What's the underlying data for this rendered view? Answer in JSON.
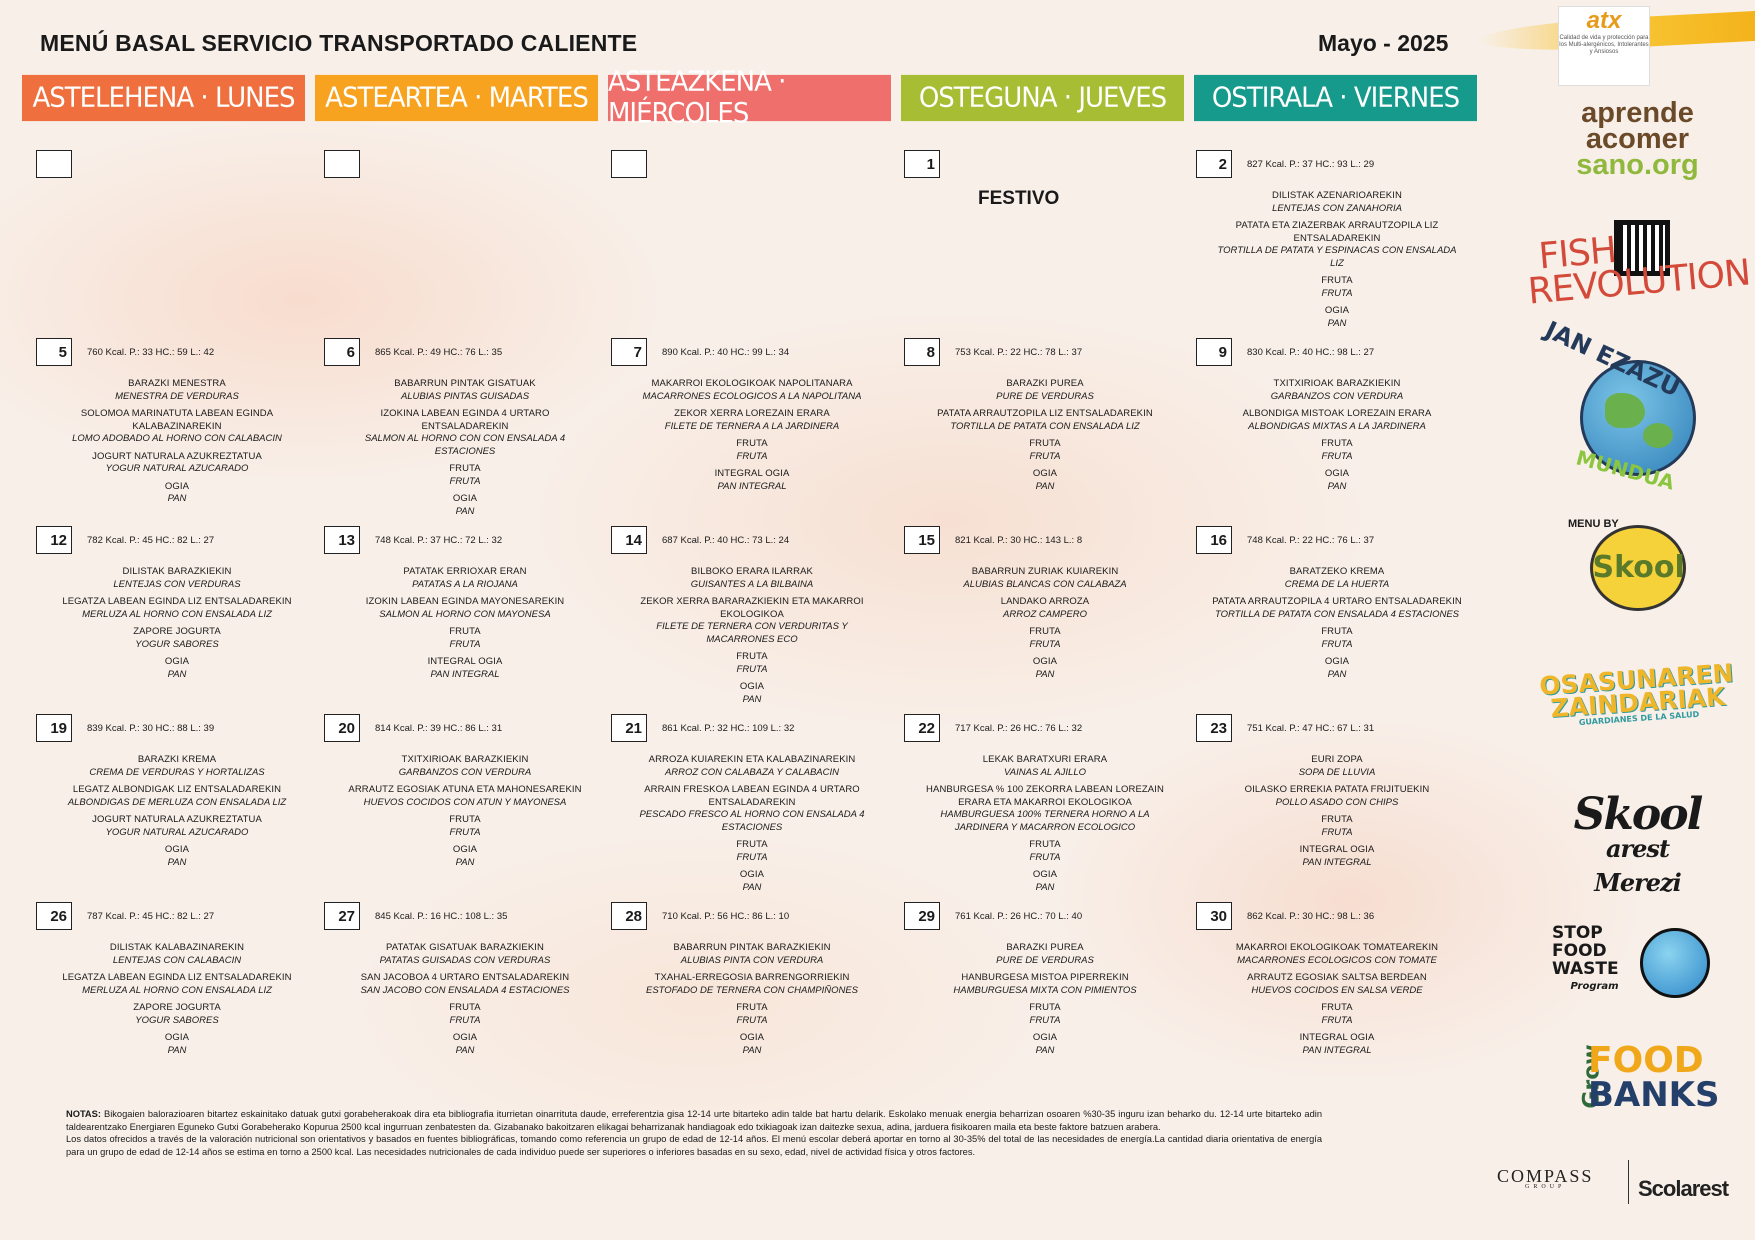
{
  "header": {
    "title": "MENÚ BASAL SERVICIO TRANSPORTADO CALIENTE",
    "date": "Mayo - 2025"
  },
  "days": [
    {
      "label": "ASTELEHENA · LUNES",
      "color": "#ef6f3e"
    },
    {
      "label": "ASTEARTEA · MARTES",
      "color": "#f7a320"
    },
    {
      "label": "ASTEAZKENA · MIÉRCOLES",
      "color": "#ee6f6b"
    },
    {
      "label": "OSTEGUNA · JUEVES",
      "color": "#a7bd34"
    },
    {
      "label": "OSTIRALA · VIERNES",
      "color": "#169a8c"
    }
  ],
  "weeks": [
    [
      {
        "num": "",
        "nutri": "",
        "dishes": []
      },
      {
        "num": "",
        "nutri": "",
        "dishes": []
      },
      {
        "num": "",
        "nutri": "",
        "dishes": []
      },
      {
        "num": "1",
        "nutri": "",
        "festivo": "FESTIVO",
        "dishes": []
      },
      {
        "num": "2",
        "nutri": "827 Kcal. P.: 37 HC.: 93 L.: 29",
        "dishes": [
          {
            "eu": "DILISTAK AZENARIOAREKIN",
            "es": "LENTEJAS CON ZANAHORIA"
          },
          {
            "eu": "PATATA ETA ZIAZERBAK ARRAUTZOPILA LIZ ENTSALADAREKIN",
            "es": "TORTILLA DE PATATA Y ESPINACAS CON ENSALADA LIZ"
          },
          {
            "eu": "FRUTA",
            "es": "FRUTA"
          },
          {
            "eu": "OGIA",
            "es": "PAN"
          }
        ]
      }
    ],
    [
      {
        "num": "5",
        "nutri": "760 Kcal. P.: 33 HC.: 59 L.: 42",
        "dishes": [
          {
            "eu": "BARAZKI MENESTRA",
            "es": "MENESTRA DE VERDURAS"
          },
          {
            "eu": "SOLOMOA MARINATUTA LABEAN EGINDA KALABAZINAREKIN",
            "es": "LOMO ADOBADO AL HORNO CON CALABACIN"
          },
          {
            "eu": "JOGURT NATURALA AZUKREZTATUA",
            "es": "YOGUR NATURAL AZUCARADO"
          },
          {
            "eu": "OGIA",
            "es": "PAN"
          }
        ]
      },
      {
        "num": "6",
        "nutri": "865 Kcal. P.: 49 HC.: 76 L.: 35",
        "dishes": [
          {
            "eu": "BABARRUN PINTAK GISATUAK",
            "es": "ALUBIAS PINTAS GUISADAS"
          },
          {
            "eu": "IZOKINA LABEAN EGINDA 4 URTARO ENTSALADAREKIN",
            "es": "SALMON AL HORNO CON CON ENSALADA 4 ESTACIONES"
          },
          {
            "eu": "FRUTA",
            "es": "FRUTA"
          },
          {
            "eu": "OGIA",
            "es": "PAN"
          }
        ]
      },
      {
        "num": "7",
        "nutri": "890 Kcal. P.: 40 HC.: 99 L.: 34",
        "dishes": [
          {
            "eu": "MAKARROI EKOLOGIKOAK NAPOLITANARA",
            "es": "MACARRONES ECOLOGICOS A LA NAPOLITANA"
          },
          {
            "eu": "ZEKOR XERRA LOREZAIN ERARA",
            "es": "FILETE DE TERNERA A LA JARDINERA"
          },
          {
            "eu": "FRUTA",
            "es": "FRUTA"
          },
          {
            "eu": "INTEGRAL OGIA",
            "es": "PAN INTEGRAL"
          }
        ]
      },
      {
        "num": "8",
        "nutri": "753 Kcal. P.: 22 HC.: 78 L.: 37",
        "dishes": [
          {
            "eu": "BARAZKI PUREA",
            "es": "PURE DE VERDURAS"
          },
          {
            "eu": "PATATA ARRAUTZOPILA LIZ ENTSALADAREKIN",
            "es": "TORTILLA DE PATATA CON ENSALADA LIZ"
          },
          {
            "eu": "FRUTA",
            "es": "FRUTA"
          },
          {
            "eu": "OGIA",
            "es": "PAN"
          }
        ]
      },
      {
        "num": "9",
        "nutri": "830 Kcal. P.: 40 HC.: 98 L.: 27",
        "dishes": [
          {
            "eu": "TXITXIRIOAK BARAZKIEKIN",
            "es": "GARBANZOS CON VERDURA"
          },
          {
            "eu": "ALBONDIGA MISTOAK LOREZAIN ERARA",
            "es": "ALBONDIGAS MIXTAS A LA JARDINERA"
          },
          {
            "eu": "FRUTA",
            "es": "FRUTA"
          },
          {
            "eu": "OGIA",
            "es": "PAN"
          }
        ]
      }
    ],
    [
      {
        "num": "12",
        "nutri": "782 Kcal. P.: 45 HC.: 82 L.: 27",
        "dishes": [
          {
            "eu": "DILISTAK BARAZKIEKIN",
            "es": "LENTEJAS CON VERDURAS"
          },
          {
            "eu": "LEGATZA LABEAN EGINDA LIZ ENTSALADAREKIN",
            "es": "MERLUZA AL HORNO CON ENSALADA LIZ"
          },
          {
            "eu": "ZAPORE JOGURTA",
            "es": "YOGUR SABORES"
          },
          {
            "eu": "OGIA",
            "es": "PAN"
          }
        ]
      },
      {
        "num": "13",
        "nutri": "748 Kcal. P.: 37 HC.: 72 L.: 32",
        "dishes": [
          {
            "eu": "PATATAK ERRIOXAR ERAN",
            "es": "PATATAS A LA RIOJANA"
          },
          {
            "eu": "IZOKIN LABEAN EGINDA MAYONESAREKIN",
            "es": "SALMON AL HORNO CON MAYONESA"
          },
          {
            "eu": "FRUTA",
            "es": "FRUTA"
          },
          {
            "eu": "INTEGRAL OGIA",
            "es": "PAN INTEGRAL"
          }
        ]
      },
      {
        "num": "14",
        "nutri": "687 Kcal. P.: 40 HC.: 73 L.: 24",
        "dishes": [
          {
            "eu": "BILBOKO ERARA ILARRAK",
            "es": "GUISANTES A LA BILBAINA"
          },
          {
            "eu": "ZEKOR XERRA BARARAZKIEKIN ETA MAKARROI EKOLOGIKOA",
            "es": "FILETE DE TERNERA CON VERDURITAS Y MACARRONES ECO"
          },
          {
            "eu": "FRUTA",
            "es": "FRUTA"
          },
          {
            "eu": "OGIA",
            "es": "PAN"
          }
        ]
      },
      {
        "num": "15",
        "nutri": "821 Kcal. P.: 30 HC.: 143 L.: 8",
        "dishes": [
          {
            "eu": "BABARRUN ZURIAK KUIAREKIN",
            "es": "ALUBIAS BLANCAS CON CALABAZA"
          },
          {
            "eu": "LANDAKO ARROZA",
            "es": "ARROZ CAMPERO"
          },
          {
            "eu": "FRUTA",
            "es": "FRUTA"
          },
          {
            "eu": "OGIA",
            "es": "PAN"
          }
        ]
      },
      {
        "num": "16",
        "nutri": "748 Kcal. P.: 22 HC.: 76 L.: 37",
        "dishes": [
          {
            "eu": "BARATZEKO KREMA",
            "es": "CREMA DE LA HUERTA"
          },
          {
            "eu": "PATATA ARRAUTZOPILA 4 URTARO ENTSALADAREKIN",
            "es": "TORTILLA DE PATATA CON ENSALADA 4 ESTACIONES"
          },
          {
            "eu": "FRUTA",
            "es": "FRUTA"
          },
          {
            "eu": "OGIA",
            "es": "PAN"
          }
        ]
      }
    ],
    [
      {
        "num": "19",
        "nutri": "839 Kcal. P.: 30 HC.: 88 L.: 39",
        "dishes": [
          {
            "eu": "BARAZKI KREMA",
            "es": "CREMA DE VERDURAS Y HORTALIZAS"
          },
          {
            "eu": "LEGATZ ALBONDIGAK LIZ ENTSALADAREKIN",
            "es": "ALBONDIGAS DE MERLUZA CON ENSALADA LIZ"
          },
          {
            "eu": "JOGURT NATURALA AZUKREZTATUA",
            "es": "YOGUR NATURAL AZUCARADO"
          },
          {
            "eu": "OGIA",
            "es": "PAN"
          }
        ]
      },
      {
        "num": "20",
        "nutri": "814 Kcal. P.: 39 HC.: 86 L.: 31",
        "dishes": [
          {
            "eu": "TXITXIRIOAK BARAZKIEKIN",
            "es": "GARBANZOS CON VERDURA"
          },
          {
            "eu": "ARRAUTZ EGOSIAK ATUNA ETA MAHONESAREKIN",
            "es": "HUEVOS COCIDOS CON ATUN Y MAYONESA"
          },
          {
            "eu": "FRUTA",
            "es": "FRUTA"
          },
          {
            "eu": "OGIA",
            "es": "PAN"
          }
        ]
      },
      {
        "num": "21",
        "nutri": "861 Kcal. P.: 32 HC.: 109 L.: 32",
        "dishes": [
          {
            "eu": "ARROZA KUIAREKIN ETA KALABAZINAREKIN",
            "es": "ARROZ CON CALABAZA Y CALABACIN"
          },
          {
            "eu": "ARRAIN FRESKOA LABEAN EGINDA 4 URTARO ENTSALADAREKIN",
            "es": "PESCADO FRESCO AL HORNO CON ENSALADA 4 ESTACIONES"
          },
          {
            "eu": "FRUTA",
            "es": "FRUTA"
          },
          {
            "eu": "OGIA",
            "es": "PAN"
          }
        ]
      },
      {
        "num": "22",
        "nutri": "717 Kcal. P.: 26 HC.: 76 L.: 32",
        "dishes": [
          {
            "eu": "LEKAK BARATXURI ERARA",
            "es": "VAINAS AL AJILLO"
          },
          {
            "eu": "HANBURGESA % 100 ZEKORRA LABEAN LOREZAIN ERARA ETA MAKARROI EKOLOGIKOA",
            "es": "HAMBURGUESA 100% TERNERA HORNO A LA JARDINERA Y MACARRON ECOLOGICO"
          },
          {
            "eu": "FRUTA",
            "es": "FRUTA"
          },
          {
            "eu": "OGIA",
            "es": "PAN"
          }
        ]
      },
      {
        "num": "23",
        "nutri": "751 Kcal. P.: 47 HC.: 67 L.: 31",
        "dishes": [
          {
            "eu": "EURI ZOPA",
            "es": "SOPA DE LLUVIA"
          },
          {
            "eu": "OILASKO ERREKIA PATATA FRIJITUEKIN",
            "es": "POLLO ASADO CON CHIPS"
          },
          {
            "eu": "FRUTA",
            "es": "FRUTA"
          },
          {
            "eu": "INTEGRAL OGIA",
            "es": "PAN INTEGRAL"
          }
        ]
      }
    ],
    [
      {
        "num": "26",
        "nutri": "787 Kcal. P.: 45 HC.: 82 L.: 27",
        "dishes": [
          {
            "eu": "DILISTAK KALABAZINAREKIN",
            "es": "LENTEJAS CON CALABACIN"
          },
          {
            "eu": "LEGATZA LABEAN EGINDA LIZ ENTSALADAREKIN",
            "es": "MERLUZA AL HORNO CON ENSALADA LIZ"
          },
          {
            "eu": "ZAPORE JOGURTA",
            "es": "YOGUR SABORES"
          },
          {
            "eu": "OGIA",
            "es": "PAN"
          }
        ]
      },
      {
        "num": "27",
        "nutri": "845 Kcal. P.: 16 HC.: 108 L.: 35",
        "dishes": [
          {
            "eu": "PATATAK GISATUAK BARAZKIEKIN",
            "es": "PATATAS GUISADAS CON VERDURAS"
          },
          {
            "eu": "SAN JACOBOA 4 URTARO ENTSALADAREKIN",
            "es": "SAN JACOBO CON ENSALADA 4 ESTACIONES"
          },
          {
            "eu": "FRUTA",
            "es": "FRUTA"
          },
          {
            "eu": "OGIA",
            "es": "PAN"
          }
        ]
      },
      {
        "num": "28",
        "nutri": "710 Kcal. P.: 56 HC.: 86 L.: 10",
        "dishes": [
          {
            "eu": "BABARRUN PINTAK BARAZKIEKIN",
            "es": "ALUBIAS PINTA CON VERDURA"
          },
          {
            "eu": "TXAHAL-ERREGOSIA BARRENGORRIEKIN",
            "es": "ESTOFADO DE TERNERA CON CHAMPIÑONES"
          },
          {
            "eu": "FRUTA",
            "es": "FRUTA"
          },
          {
            "eu": "OGIA",
            "es": "PAN"
          }
        ]
      },
      {
        "num": "29",
        "nutri": "761 Kcal. P.: 26 HC.: 70 L.: 40",
        "dishes": [
          {
            "eu": "BARAZKI PUREA",
            "es": "PURE DE VERDURAS"
          },
          {
            "eu": "HANBURGESA MISTOA PIPERREKIN",
            "es": "HAMBURGUESA MIXTA CON PIMIENTOS"
          },
          {
            "eu": "FRUTA",
            "es": "FRUTA"
          },
          {
            "eu": "OGIA",
            "es": "PAN"
          }
        ]
      },
      {
        "num": "30",
        "nutri": "862 Kcal. P.: 30 HC.: 98 L.: 36",
        "dishes": [
          {
            "eu": "MAKARROI EKOLOGIKOAK TOMATEAREKIN",
            "es": "MACARRONES ECOLOGICOS CON TOMATE"
          },
          {
            "eu": "ARRAUTZ EGOSIAK SALTSA BERDEAN",
            "es": "HUEVOS COCIDOS EN SALSA VERDE"
          },
          {
            "eu": "FRUTA",
            "es": "FRUTA"
          },
          {
            "eu": "INTEGRAL OGIA",
            "es": "PAN INTEGRAL"
          }
        ]
      }
    ]
  ],
  "notes": {
    "label": "NOTAS:",
    "eu": "Bikogaien balorazioaren bitartez eskainitako datuak gutxi gorabeherakoak dira eta bibliografia iturrietan oinarrituta daude, erreferentzia gisa 12-14 urte bitarteko adin talde bat hartu delarik. Eskolako menuak energia beharrizan osoaren %30-35 inguru izan beharko du. 12-14 urte bitarteko adin taldearentzako Energiaren Eguneko Gutxi Gorabeherako Kopurua 2500 kcal ingurruan zenbatesten da. Gizabanako bakoitzaren elikagai beharrizanak handiagoak edo txikiagoak izan daitezke sexua, adina, jarduera fisikoaren maila eta beste faktore batzuen arabera.",
    "es": "Los datos ofrecidos a través de la valoración nutricional son orientativos y basados en fuentes bibliográficas, tomando como referencia un grupo de edad de 12-14 años. El menú escolar deberá aportar en torno al 30-35% del total de las necesidades de energía.La cantidad diaria orientativa de energía para un grupo de edad de 12-14 años se estima en torno a 2500 kcal. Las necesidades nutricionales de cada individuo puede ser superiores o inferiores basadas en su sexo, edad, nivel de actividad física y otros factores."
  },
  "logos": {
    "atx_name": "atx",
    "atx_tagline": "Calidad de vida y protección para los Multi-alergénicos, Intolerantes y Ansiosos",
    "aprende_1": "aprende",
    "aprende_2": "acomer",
    "aprende_3": "sano.org",
    "fish_1": "FISH",
    "fish_2": "REVOLUTION",
    "janez_top": "JAN EZAZU",
    "janez_bottom": "MUNDUA",
    "skool_menu": "MENU BY",
    "skool": "Skool",
    "osasun_1": "OSASUNAREN",
    "osasun_2": "ZAINDARIAK",
    "osasun_3": "GUARDIANES DE LA SALUD",
    "skoolarest_1": "Skool",
    "skoolarest_2": "arest",
    "skoolarest_3": "Merezi",
    "stop_1": "STOP",
    "stop_2": "FOOD",
    "stop_3": "WASTE",
    "stop_4": "Program",
    "grow": "Grow",
    "food_1": "FOOD",
    "food_2": "BANKS",
    "compass": "COMPASS",
    "compass_group": "GROUP",
    "scolarest": "Scolarest"
  }
}
